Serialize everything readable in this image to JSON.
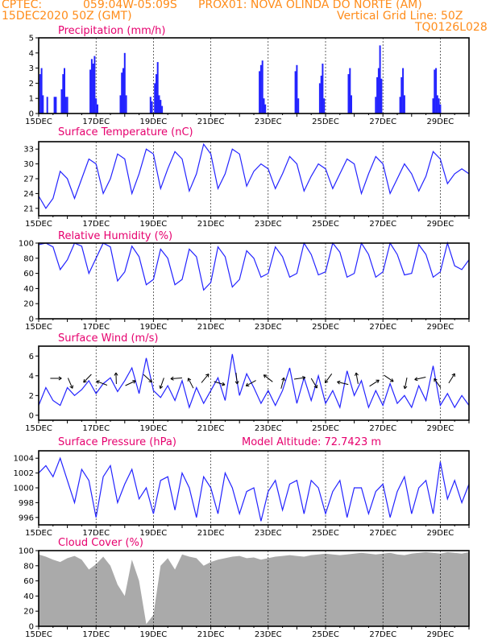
{
  "header": {
    "source": "CPTEC:",
    "coords": "059:04W-05:09S",
    "location": "PROX01: NOVA OLINDA DO NORTE (AM)",
    "run_date": "15DEC2020 50Z (GMT)",
    "grid_note": "Vertical Grid Line: 50Z",
    "model_code": "TQ0126L028"
  },
  "colors": {
    "header": "#ff8c1a",
    "panel_title": "#e6006e",
    "series": "#2323ff",
    "cloud": "#aaaaaa"
  },
  "chart_data": [
    {
      "type": "bar",
      "title": "Precipitation (mm/h)",
      "x_tick_labels": [
        "15DEC",
        "17DEC",
        "19DEC",
        "21DEC",
        "23DEC",
        "25DEC",
        "27DEC",
        "29DEC"
      ],
      "xlim_days": [
        15,
        30
      ],
      "ylim": [
        0,
        5
      ],
      "yticks": [
        0,
        1,
        2,
        3,
        4,
        5
      ],
      "x": [
        15.05,
        15.1,
        15.15,
        15.3,
        15.55,
        15.6,
        15.8,
        15.85,
        15.9,
        15.95,
        16.0,
        16.8,
        16.85,
        16.9,
        16.95,
        17.0,
        17.05,
        17.85,
        17.9,
        17.95,
        18.0,
        18.05,
        18.9,
        18.95,
        19.05,
        19.1,
        19.15,
        19.2,
        19.25,
        19.3,
        22.7,
        22.75,
        22.8,
        22.85,
        22.9,
        23.95,
        24.0,
        24.05,
        24.8,
        24.85,
        24.9,
        24.95,
        25.8,
        25.85,
        25.9,
        26.75,
        26.8,
        26.85,
        26.9,
        26.95,
        27.6,
        27.65,
        27.7,
        27.75,
        28.75,
        28.8,
        28.85,
        28.9,
        28.95,
        29.0
      ],
      "values": [
        2.6,
        3.0,
        1.2,
        1.1,
        1.1,
        1.1,
        1.6,
        2.6,
        3.0,
        1.1,
        1.1,
        2.9,
        3.6,
        3.3,
        3.8,
        1.0,
        0.6,
        1.2,
        2.7,
        3.0,
        4.0,
        1.2,
        1.1,
        0.8,
        2.0,
        2.6,
        3.4,
        1.2,
        0.9,
        0.5,
        2.8,
        3.2,
        3.5,
        1.0,
        0.6,
        2.8,
        3.2,
        1.0,
        2.0,
        2.5,
        3.3,
        1.0,
        2.6,
        3.0,
        1.2,
        1.1,
        2.4,
        3.0,
        4.5,
        2.3,
        1.1,
        2.4,
        3.0,
        1.2,
        1.0,
        2.9,
        3.0,
        1.2,
        1.0,
        0.6
      ]
    },
    {
      "type": "line",
      "title": "Surface Temperature (nC)",
      "x_tick_labels": [
        "15DEC",
        "17DEC",
        "19DEC",
        "21DEC",
        "23DEC",
        "25DEC",
        "27DEC",
        "29DEC"
      ],
      "xlim_days": [
        15,
        30
      ],
      "ylim": [
        19.5,
        34.5
      ],
      "yticks": [
        21,
        24,
        27,
        30,
        33
      ],
      "x": [
        15.0,
        15.25,
        15.5,
        15.75,
        16.0,
        16.25,
        16.5,
        16.75,
        17.0,
        17.25,
        17.5,
        17.75,
        18.0,
        18.25,
        18.5,
        18.75,
        19.0,
        19.25,
        19.5,
        19.75,
        20.0,
        20.25,
        20.5,
        20.75,
        21.0,
        21.25,
        21.5,
        21.75,
        22.0,
        22.25,
        22.5,
        22.75,
        23.0,
        23.25,
        23.5,
        23.75,
        24.0,
        24.25,
        24.5,
        24.75,
        25.0,
        25.25,
        25.5,
        25.75,
        26.0,
        26.25,
        26.5,
        26.75,
        27.0,
        27.25,
        27.5,
        27.75,
        28.0,
        28.25,
        28.5,
        28.75,
        29.0,
        29.25,
        29.5,
        29.75,
        30.0
      ],
      "values": [
        23.5,
        21.0,
        23.0,
        28.5,
        27.0,
        23.0,
        27.0,
        31.0,
        30.0,
        24.0,
        27.0,
        32.0,
        31.0,
        24.0,
        28.0,
        33.0,
        32.0,
        25.0,
        29.0,
        32.5,
        31.0,
        24.5,
        28.0,
        34.0,
        32.0,
        25.0,
        28.0,
        33.0,
        32.0,
        25.5,
        28.5,
        30.0,
        29.0,
        25.0,
        28.0,
        31.5,
        30.0,
        24.5,
        27.5,
        30.0,
        29.0,
        25.0,
        28.0,
        31.0,
        30.0,
        24.0,
        28.0,
        31.5,
        30.0,
        24.0,
        27.0,
        30.0,
        28.0,
        24.5,
        27.5,
        32.5,
        31.0,
        26.0,
        28.0,
        29.0,
        28.0
      ]
    },
    {
      "type": "line",
      "title": "Relative Humidity (%)",
      "x_tick_labels": [
        "15DEC",
        "17DEC",
        "19DEC",
        "21DEC",
        "23DEC",
        "25DEC",
        "27DEC",
        "29DEC"
      ],
      "xlim_days": [
        15,
        30
      ],
      "ylim": [
        0,
        100
      ],
      "yticks": [
        0,
        20,
        40,
        60,
        80,
        100
      ],
      "x": [
        15.0,
        15.25,
        15.5,
        15.75,
        16.0,
        16.25,
        16.5,
        16.75,
        17.0,
        17.25,
        17.5,
        17.75,
        18.0,
        18.25,
        18.5,
        18.75,
        19.0,
        19.25,
        19.5,
        19.75,
        20.0,
        20.25,
        20.5,
        20.75,
        21.0,
        21.25,
        21.5,
        21.75,
        22.0,
        22.25,
        22.5,
        22.75,
        23.0,
        23.25,
        23.5,
        23.75,
        24.0,
        24.25,
        24.5,
        24.75,
        25.0,
        25.25,
        25.5,
        25.75,
        26.0,
        26.25,
        26.5,
        26.75,
        27.0,
        27.25,
        27.5,
        27.75,
        28.0,
        28.25,
        28.5,
        28.75,
        29.0,
        29.25,
        29.5,
        29.75,
        30.0
      ],
      "values": [
        98,
        100,
        95,
        65,
        78,
        100,
        96,
        60,
        80,
        100,
        95,
        50,
        62,
        96,
        82,
        45,
        52,
        92,
        80,
        45,
        52,
        92,
        82,
        38,
        48,
        95,
        82,
        42,
        52,
        90,
        80,
        55,
        60,
        95,
        82,
        55,
        60,
        100,
        85,
        58,
        62,
        100,
        88,
        55,
        60,
        100,
        85,
        55,
        62,
        100,
        85,
        58,
        60,
        98,
        85,
        55,
        62,
        100,
        70,
        65,
        78
      ]
    },
    {
      "type": "line",
      "title": "Surface Wind (m/s)",
      "x_tick_labels": [
        "15DEC",
        "17DEC",
        "19DEC",
        "21DEC",
        "23DEC",
        "25DEC",
        "27DEC",
        "29DEC"
      ],
      "xlim_days": [
        15,
        30
      ],
      "ylim": [
        -0.5,
        7
      ],
      "yticks": [
        0,
        2,
        4,
        6
      ],
      "x": [
        15.0,
        15.25,
        15.5,
        15.75,
        16.0,
        16.25,
        16.5,
        16.75,
        17.0,
        17.25,
        17.5,
        17.75,
        18.0,
        18.25,
        18.5,
        18.75,
        19.0,
        19.25,
        19.5,
        19.75,
        20.0,
        20.25,
        20.5,
        20.75,
        21.0,
        21.25,
        21.5,
        21.75,
        22.0,
        22.25,
        22.5,
        22.75,
        23.0,
        23.25,
        23.5,
        23.75,
        24.0,
        24.25,
        24.5,
        24.75,
        25.0,
        25.25,
        25.5,
        25.75,
        26.0,
        26.25,
        26.5,
        26.75,
        27.0,
        27.25,
        27.5,
        27.75,
        28.0,
        28.25,
        28.5,
        28.75,
        29.0,
        29.25,
        29.5,
        29.75,
        30.0
      ],
      "values": [
        1.0,
        2.8,
        1.5,
        1.0,
        2.8,
        2.0,
        2.6,
        3.5,
        2.2,
        3.2,
        3.8,
        2.4,
        3.5,
        4.8,
        2.2,
        5.8,
        2.5,
        1.8,
        3.0,
        1.5,
        3.5,
        0.8,
        2.8,
        1.2,
        2.5,
        3.8,
        1.5,
        6.2,
        2.0,
        4.2,
        2.8,
        1.2,
        2.5,
        1.0,
        2.5,
        4.8,
        1.2,
        3.8,
        1.5,
        4.0,
        1.2,
        2.5,
        0.8,
        4.5,
        2.0,
        3.5,
        0.8,
        2.5,
        1.0,
        3.2,
        1.2,
        2.0,
        0.8,
        3.0,
        1.5,
        5.0,
        1.0,
        2.2,
        0.8,
        2.0,
        1.0
      ],
      "arrow_labels_x": [
        15.6,
        16.1,
        16.7,
        17.2,
        17.7,
        18.2,
        18.8,
        19.3,
        19.8,
        20.3,
        20.8,
        21.3,
        21.9,
        22.4,
        23.0,
        23.5,
        24.1,
        24.6,
        25.1,
        25.6,
        26.1,
        26.7,
        27.2,
        27.8,
        28.3,
        28.9,
        29.4
      ]
    },
    {
      "type": "line",
      "title": "Surface Pressure (hPa)",
      "annotation": "Model Altitude: 72.7423 m",
      "x_tick_labels": [
        "15DEC",
        "17DEC",
        "19DEC",
        "21DEC",
        "23DEC",
        "25DEC",
        "27DEC",
        "29DEC"
      ],
      "xlim_days": [
        15,
        30
      ],
      "ylim": [
        995,
        1005
      ],
      "yticks": [
        996,
        998,
        1000,
        1002,
        1004
      ],
      "x": [
        15.0,
        15.25,
        15.5,
        15.75,
        16.0,
        16.25,
        16.5,
        16.75,
        17.0,
        17.25,
        17.5,
        17.75,
        18.0,
        18.25,
        18.5,
        18.75,
        19.0,
        19.25,
        19.5,
        19.75,
        20.0,
        20.25,
        20.5,
        20.75,
        21.0,
        21.25,
        21.5,
        21.75,
        22.0,
        22.25,
        22.5,
        22.75,
        23.0,
        23.25,
        23.5,
        23.75,
        24.0,
        24.25,
        24.5,
        24.75,
        25.0,
        25.25,
        25.5,
        25.75,
        26.0,
        26.25,
        26.5,
        26.75,
        27.0,
        27.25,
        27.5,
        27.75,
        28.0,
        28.25,
        28.5,
        28.75,
        29.0,
        29.25,
        29.5,
        29.75,
        30.0
      ],
      "values": [
        1002.0,
        1003.0,
        1001.5,
        1004.0,
        1001.0,
        998.0,
        1002.5,
        1001.0,
        996.0,
        1001.5,
        1003.0,
        998.0,
        1000.5,
        1002.5,
        998.5,
        1000.0,
        996.5,
        1001.0,
        1001.5,
        997.0,
        1002.0,
        1000.0,
        996.0,
        1001.5,
        1000.0,
        996.5,
        1002.0,
        1000.0,
        996.5,
        999.5,
        1000.0,
        995.5,
        999.5,
        1001.0,
        997.0,
        1000.5,
        1001.0,
        996.5,
        1001.0,
        1000.0,
        996.5,
        999.5,
        1001.0,
        996.0,
        1000.0,
        1000.0,
        996.5,
        999.5,
        1000.5,
        996.0,
        999.5,
        1001.5,
        996.5,
        1000.0,
        1001.0,
        996.5,
        1003.5,
        998.5,
        1001.0,
        998.0,
        1000.5
      ]
    },
    {
      "type": "area",
      "title": "Cloud Cover (%)",
      "x_tick_labels": [
        "15DEC",
        "17DEC",
        "19DEC",
        "21DEC",
        "23DEC",
        "25DEC",
        "27DEC",
        "29DEC"
      ],
      "xlim_days": [
        15,
        30
      ],
      "ylim": [
        0,
        100
      ],
      "yticks": [
        0,
        20,
        40,
        60,
        80,
        100
      ],
      "x": [
        15.0,
        15.25,
        15.5,
        15.75,
        16.0,
        16.25,
        16.5,
        16.75,
        17.0,
        17.25,
        17.5,
        17.75,
        18.0,
        18.25,
        18.5,
        18.75,
        19.0,
        19.25,
        19.5,
        19.75,
        20.0,
        20.25,
        20.5,
        20.75,
        21.0,
        21.25,
        21.5,
        21.75,
        22.0,
        22.25,
        22.5,
        22.75,
        23.0,
        23.25,
        23.5,
        23.75,
        24.0,
        24.25,
        24.5,
        24.75,
        25.0,
        25.25,
        25.5,
        25.75,
        26.0,
        26.25,
        26.5,
        26.75,
        27.0,
        27.25,
        27.5,
        27.75,
        28.0,
        28.25,
        28.5,
        28.75,
        29.0,
        29.25,
        29.5,
        29.75,
        30.0
      ],
      "values": [
        95,
        92,
        88,
        85,
        90,
        93,
        88,
        75,
        82,
        92,
        80,
        55,
        40,
        88,
        60,
        3,
        15,
        80,
        90,
        75,
        95,
        92,
        90,
        80,
        85,
        88,
        90,
        92,
        93,
        90,
        91,
        88,
        90,
        92,
        93,
        94,
        93,
        92,
        94,
        95,
        96,
        95,
        94,
        95,
        96,
        97,
        96,
        95,
        96,
        97,
        95,
        94,
        96,
        97,
        98,
        97,
        96,
        98,
        97,
        96,
        98
      ]
    }
  ]
}
